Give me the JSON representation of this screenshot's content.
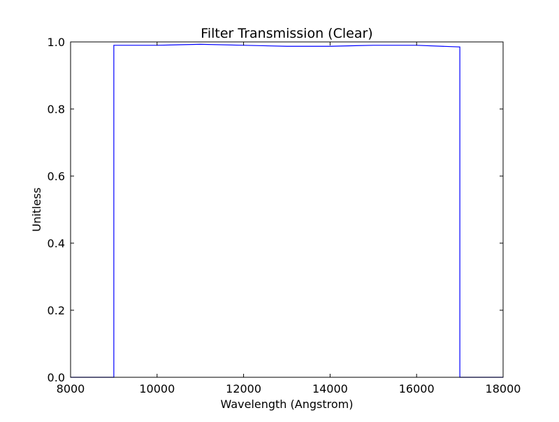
{
  "chart_data": {
    "type": "line",
    "title": "Filter Transmission (Clear)",
    "xlabel": "Wavelength (Angstrom)",
    "ylabel": "Unitless",
    "xlim": [
      8000,
      18000
    ],
    "ylim": [
      0.0,
      1.0
    ],
    "xticks": [
      8000,
      10000,
      12000,
      14000,
      16000,
      18000
    ],
    "xtick_labels": [
      "8000",
      "10000",
      "12000",
      "14000",
      "16000",
      "18000"
    ],
    "yticks": [
      0.0,
      0.2,
      0.4,
      0.6,
      0.8,
      1.0
    ],
    "ytick_labels": [
      "0.0",
      "0.2",
      "0.4",
      "0.6",
      "0.8",
      "1.0"
    ],
    "grid": false,
    "series": [
      {
        "color": "#0000ff",
        "x": [
          8000,
          9000,
          9000,
          10000,
          11000,
          12000,
          13000,
          14000,
          15000,
          16000,
          17000,
          17000,
          18000
        ],
        "y": [
          0.0,
          0.0,
          0.99,
          0.99,
          0.993,
          0.99,
          0.987,
          0.987,
          0.99,
          0.99,
          0.985,
          0.0,
          0.0
        ]
      }
    ]
  }
}
